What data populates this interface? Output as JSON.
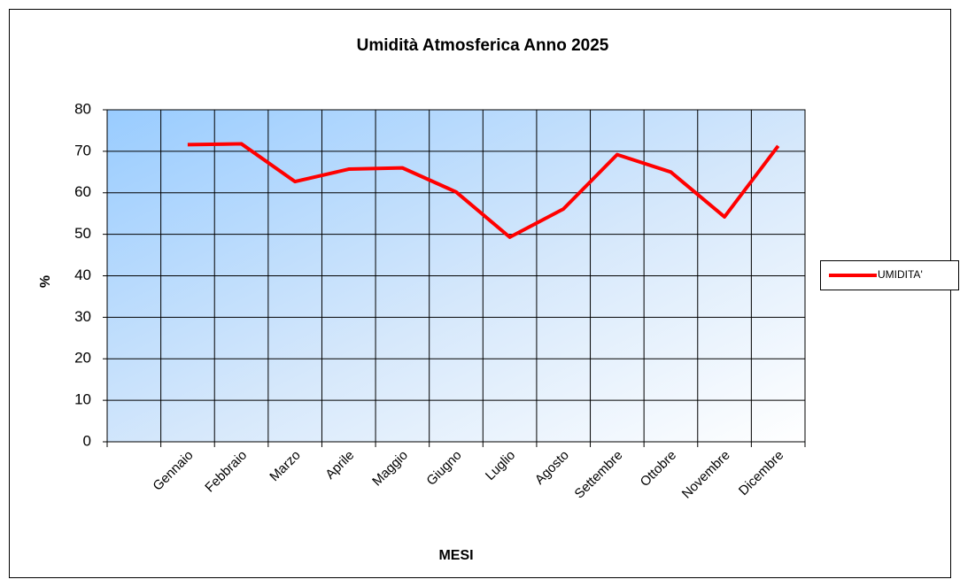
{
  "chart_data": {
    "type": "line",
    "title": "Umidità Atmosferica Anno 2025",
    "x_label": "MESI",
    "y_label": "%",
    "categories": [
      null,
      "Gennaio",
      "Febbraio",
      "Marzo",
      "Aprile",
      "Maggio",
      "Giugno",
      "Luglio",
      "Agosto",
      "Settembre",
      "Ottobre",
      "Novembre",
      "Dicembre"
    ],
    "series": [
      {
        "name": "UMIDITA'",
        "color": "#ff0000",
        "values": [
          null,
          71.6,
          71.8,
          62.7,
          65.7,
          66,
          60.2,
          49.3,
          56.1,
          69.2,
          65,
          54.2,
          71.3
        ]
      }
    ],
    "ylim": [
      0,
      80
    ],
    "yticks": [
      0,
      10,
      20,
      30,
      40,
      50,
      60,
      70,
      80
    ],
    "grid": true,
    "legend": "right"
  }
}
